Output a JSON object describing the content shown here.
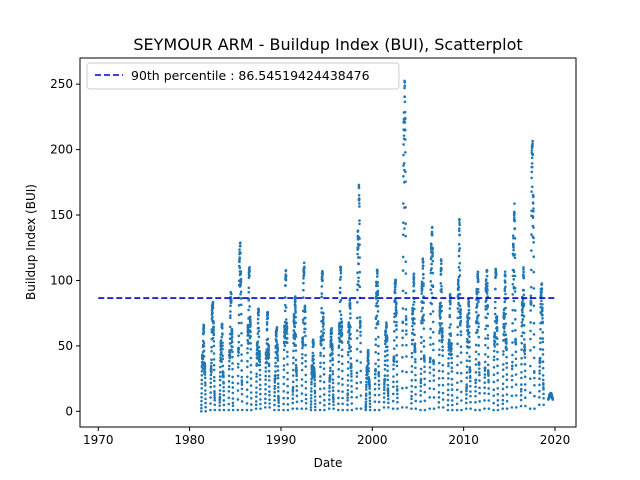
{
  "chart_data": {
    "type": "scatter",
    "title": "SEYMOUR ARM - Buildup Index (BUI), Scatterplot",
    "xlabel": "Date",
    "ylabel": "Buildup Index (BUI)",
    "xlim": [
      1968.0,
      2022.3
    ],
    "ylim": [
      -12,
      270
    ],
    "xticks": [
      1970,
      1980,
      1990,
      2000,
      2010,
      2020
    ],
    "yticks": [
      0,
      50,
      100,
      150,
      200,
      250
    ],
    "grid": false,
    "legend_position": "top-left",
    "point_color": "#1f77b4",
    "reference_line": {
      "label": "90th percentile : 86.54519424438476",
      "value": 86.54519424438476,
      "x_range": [
        1970,
        2020
      ],
      "color": "#0000cd",
      "style": "dashed"
    },
    "seasons": [
      {
        "year": 1981,
        "peak": 67,
        "min": 0
      },
      {
        "year": 1982,
        "peak": 86,
        "min": 1
      },
      {
        "year": 1983,
        "peak": 70,
        "min": 1
      },
      {
        "year": 1984,
        "peak": 92,
        "min": 1
      },
      {
        "year": 1985,
        "peak": 132,
        "min": 1
      },
      {
        "year": 1986,
        "peak": 114,
        "min": 1
      },
      {
        "year": 1987,
        "peak": 80,
        "min": 2
      },
      {
        "year": 1988,
        "peak": 78,
        "min": 3
      },
      {
        "year": 1989,
        "peak": 66,
        "min": 1
      },
      {
        "year": 1990,
        "peak": 110,
        "min": 1
      },
      {
        "year": 1991,
        "peak": 90,
        "min": 2
      },
      {
        "year": 1992,
        "peak": 116,
        "min": 2
      },
      {
        "year": 1993,
        "peak": 55,
        "min": 1
      },
      {
        "year": 1994,
        "peak": 110,
        "min": 1
      },
      {
        "year": 1995,
        "peak": 65,
        "min": 2
      },
      {
        "year": 1996,
        "peak": 112,
        "min": 1
      },
      {
        "year": 1997,
        "peak": 88,
        "min": 1
      },
      {
        "year": 1998,
        "peak": 177,
        "min": 2
      },
      {
        "year": 1999,
        "peak": 48,
        "min": 1
      },
      {
        "year": 2000,
        "peak": 111,
        "min": 1
      },
      {
        "year": 2001,
        "peak": 70,
        "min": 3
      },
      {
        "year": 2002,
        "peak": 104,
        "min": 2
      },
      {
        "year": 2003,
        "peak": 258,
        "min": 3
      },
      {
        "year": 2004,
        "peak": 108,
        "min": 2
      },
      {
        "year": 2005,
        "peak": 120,
        "min": 1
      },
      {
        "year": 2006,
        "peak": 146,
        "min": 2
      },
      {
        "year": 2007,
        "peak": 118,
        "min": 3
      },
      {
        "year": 2008,
        "peak": 90,
        "min": 1
      },
      {
        "year": 2009,
        "peak": 148,
        "min": 1
      },
      {
        "year": 2010,
        "peak": 88,
        "min": 2
      },
      {
        "year": 2011,
        "peak": 113,
        "min": 1
      },
      {
        "year": 2012,
        "peak": 113,
        "min": 2
      },
      {
        "year": 2013,
        "peak": 111,
        "min": 1
      },
      {
        "year": 2014,
        "peak": 108,
        "min": 2
      },
      {
        "year": 2015,
        "peak": 162,
        "min": 3
      },
      {
        "year": 2016,
        "peak": 113,
        "min": 4
      },
      {
        "year": 2017,
        "peak": 214,
        "min": 2
      },
      {
        "year": 2018,
        "peak": 100,
        "min": 5
      },
      {
        "year": 2019,
        "peak": 14,
        "min": 9
      }
    ]
  }
}
